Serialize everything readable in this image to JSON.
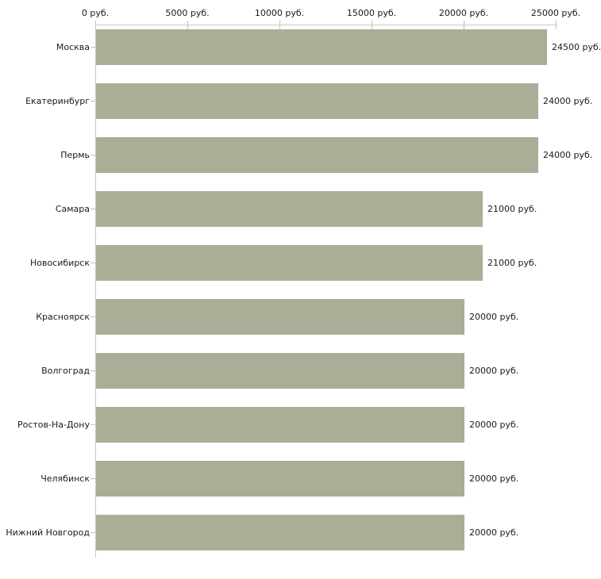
{
  "chart_data": {
    "type": "bar",
    "orientation": "horizontal",
    "title": "",
    "xlabel": "",
    "ylabel": "",
    "xlim": [
      0,
      25000
    ],
    "grid": false,
    "legend": null,
    "unit": "руб.",
    "categories": [
      "Москва",
      "Екатеринбург",
      "Пермь",
      "Самара",
      "Новосибирск",
      "Красноярск",
      "Волгоград",
      "Ростов-На-Дону",
      "Челябинск",
      "Нижний Новгород"
    ],
    "values": [
      24500,
      24000,
      24000,
      21000,
      21000,
      20000,
      20000,
      20000,
      20000,
      20000
    ],
    "value_labels": [
      "24500 руб.",
      "24000 руб.",
      "24000 руб.",
      "21000 руб.",
      "21000 руб.",
      "20000 руб.",
      "20000 руб.",
      "20000 руб.",
      "20000 руб.",
      "20000 руб."
    ],
    "x_ticks": [
      0,
      5000,
      10000,
      15000,
      20000,
      25000
    ],
    "x_tick_labels": [
      "0 руб.",
      "5000 руб.",
      "10000 руб.",
      "15000 руб.",
      "20000 руб.",
      "25000 руб."
    ]
  },
  "colors": {
    "bar_fill": "#a9af97",
    "tick_mark": "#c2c5a0",
    "axis_line": "#c9c9c9",
    "text": "#1a1a1a",
    "background": "#ffffff"
  }
}
